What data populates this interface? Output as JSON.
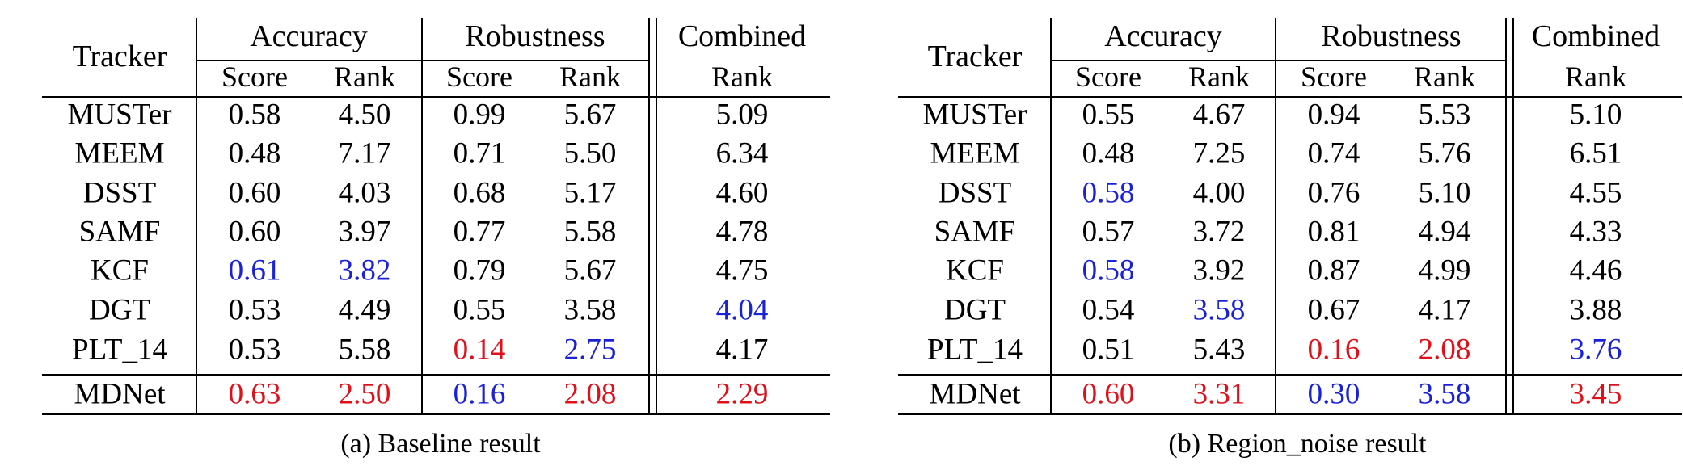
{
  "colors": {
    "best": "#e0101a",
    "second": "#1a22d8",
    "normal": "#000000"
  },
  "headers": {
    "tracker": "Tracker",
    "accuracy": "Accuracy",
    "robustness": "Robustness",
    "combined_line1": "Combined",
    "combined_line2": "Rank",
    "score": "Score",
    "rank": "Rank"
  },
  "tables": [
    {
      "caption": "(a) Baseline result",
      "rows": [
        {
          "tracker": "MUSTer",
          "acc_score": "0.58",
          "acc_rank": "4.50",
          "rob_score": "0.99",
          "rob_rank": "5.67",
          "combined": "5.09"
        },
        {
          "tracker": "MEEM",
          "acc_score": "0.48",
          "acc_rank": "7.17",
          "rob_score": "0.71",
          "rob_rank": "5.50",
          "combined": "6.34"
        },
        {
          "tracker": "DSST",
          "acc_score": "0.60",
          "acc_rank": "4.03",
          "rob_score": "0.68",
          "rob_rank": "5.17",
          "combined": "4.60"
        },
        {
          "tracker": "SAMF",
          "acc_score": "0.60",
          "acc_rank": "3.97",
          "rob_score": "0.77",
          "rob_rank": "5.58",
          "combined": "4.78"
        },
        {
          "tracker": "KCF",
          "acc_score": "0.61",
          "acc_rank": "3.82",
          "rob_score": "0.79",
          "rob_rank": "5.67",
          "combined": "4.75",
          "colors": {
            "acc_score": "blue",
            "acc_rank": "blue"
          }
        },
        {
          "tracker": "DGT",
          "acc_score": "0.53",
          "acc_rank": "4.49",
          "rob_score": "0.55",
          "rob_rank": "3.58",
          "combined": "4.04",
          "colors": {
            "combined": "blue"
          }
        },
        {
          "tracker": "PLT_14",
          "acc_score": "0.53",
          "acc_rank": "5.58",
          "rob_score": "0.14",
          "rob_rank": "2.75",
          "combined": "4.17",
          "colors": {
            "rob_score": "red",
            "rob_rank": "blue"
          }
        },
        {
          "tracker": "MDNet",
          "acc_score": "0.63",
          "acc_rank": "2.50",
          "rob_score": "0.16",
          "rob_rank": "2.08",
          "combined": "2.29",
          "colors": {
            "acc_score": "red",
            "acc_rank": "red",
            "rob_score": "blue",
            "rob_rank": "red",
            "combined": "red"
          }
        }
      ]
    },
    {
      "caption": "(b) Region_noise result",
      "rows": [
        {
          "tracker": "MUSTer",
          "acc_score": "0.55",
          "acc_rank": "4.67",
          "rob_score": "0.94",
          "rob_rank": "5.53",
          "combined": "5.10"
        },
        {
          "tracker": "MEEM",
          "acc_score": "0.48",
          "acc_rank": "7.25",
          "rob_score": "0.74",
          "rob_rank": "5.76",
          "combined": "6.51"
        },
        {
          "tracker": "DSST",
          "acc_score": "0.58",
          "acc_rank": "4.00",
          "rob_score": "0.76",
          "rob_rank": "5.10",
          "combined": "4.55",
          "colors": {
            "acc_score": "blue"
          }
        },
        {
          "tracker": "SAMF",
          "acc_score": "0.57",
          "acc_rank": "3.72",
          "rob_score": "0.81",
          "rob_rank": "4.94",
          "combined": "4.33"
        },
        {
          "tracker": "KCF",
          "acc_score": "0.58",
          "acc_rank": "3.92",
          "rob_score": "0.87",
          "rob_rank": "4.99",
          "combined": "4.46",
          "colors": {
            "acc_score": "blue"
          }
        },
        {
          "tracker": "DGT",
          "acc_score": "0.54",
          "acc_rank": "3.58",
          "rob_score": "0.67",
          "rob_rank": "4.17",
          "combined": "3.88",
          "colors": {
            "acc_rank": "blue"
          }
        },
        {
          "tracker": "PLT_14",
          "acc_score": "0.51",
          "acc_rank": "5.43",
          "rob_score": "0.16",
          "rob_rank": "2.08",
          "combined": "3.76",
          "colors": {
            "rob_score": "red",
            "rob_rank": "red",
            "combined": "blue"
          }
        },
        {
          "tracker": "MDNet",
          "acc_score": "0.60",
          "acc_rank": "3.31",
          "rob_score": "0.30",
          "rob_rank": "3.58",
          "combined": "3.45",
          "colors": {
            "acc_score": "red",
            "acc_rank": "red",
            "rob_score": "blue",
            "rob_rank": "blue",
            "combined": "red"
          }
        }
      ]
    }
  ]
}
